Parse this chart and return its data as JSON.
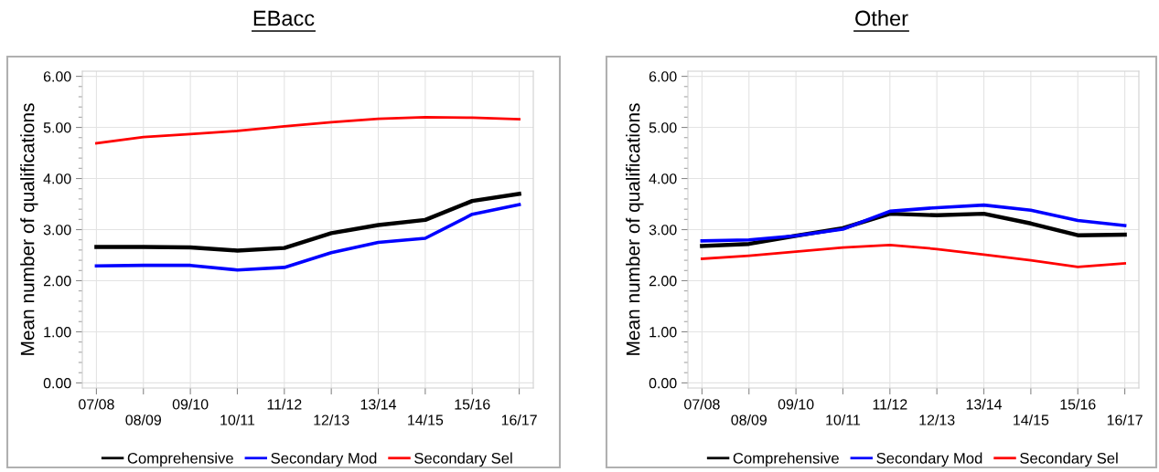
{
  "chart_data": [
    {
      "type": "line",
      "title": "EBacc",
      "ylabel": "Mean number of qualifications",
      "categories": [
        "07/08",
        "08/09",
        "09/10",
        "10/11",
        "11/12",
        "12/13",
        "13/14",
        "14/15",
        "15/16",
        "16/17"
      ],
      "series": [
        {
          "name": "Comprehensive",
          "color": "#000000",
          "values": [
            2.66,
            2.66,
            2.65,
            2.59,
            2.64,
            2.93,
            3.09,
            3.19,
            3.56,
            3.7
          ]
        },
        {
          "name": "Secondary Mod",
          "color": "#0000ff",
          "values": [
            2.29,
            2.3,
            2.3,
            2.21,
            2.26,
            2.55,
            2.75,
            2.83,
            3.3,
            3.49
          ]
        },
        {
          "name": "Secondary Sel",
          "color": "#ff0000",
          "values": [
            4.69,
            4.81,
            4.87,
            4.93,
            5.02,
            5.1,
            5.17,
            5.2,
            5.19,
            5.16
          ]
        }
      ],
      "ylim": [
        -0.1,
        6.1
      ],
      "yticks": [
        {
          "value": 0,
          "label": "0.00"
        },
        {
          "value": 1,
          "label": "1.00"
        },
        {
          "value": 2,
          "label": "2.00"
        },
        {
          "value": 3,
          "label": "3.00"
        },
        {
          "value": 4,
          "label": "4.00"
        },
        {
          "value": 5,
          "label": "5.00"
        },
        {
          "value": 6,
          "label": "6.00"
        }
      ],
      "grid": true,
      "legend": "bottom",
      "line_style": "solid",
      "marker": "none"
    },
    {
      "type": "line",
      "title": "Other",
      "ylabel": "Mean number of qualifications",
      "categories": [
        "07/08",
        "08/09",
        "09/10",
        "10/11",
        "11/12",
        "12/13",
        "13/14",
        "14/15",
        "15/16",
        "16/17"
      ],
      "series": [
        {
          "name": "Comprehensive",
          "color": "#000000",
          "values": [
            2.68,
            2.72,
            2.88,
            3.03,
            3.31,
            3.28,
            3.31,
            3.12,
            2.89,
            2.9
          ]
        },
        {
          "name": "Secondary Mod",
          "color": "#0000ff",
          "values": [
            2.78,
            2.8,
            2.88,
            3.01,
            3.36,
            3.43,
            3.48,
            3.38,
            3.18,
            3.08
          ]
        },
        {
          "name": "Secondary Sel",
          "color": "#ff0000",
          "values": [
            2.43,
            2.49,
            2.57,
            2.65,
            2.7,
            2.62,
            2.51,
            2.4,
            2.27,
            2.34
          ]
        }
      ],
      "ylim": [
        -0.1,
        6.1
      ],
      "yticks": [
        {
          "value": 0,
          "label": "0.00"
        },
        {
          "value": 1,
          "label": "1.00"
        },
        {
          "value": 2,
          "label": "2.00"
        },
        {
          "value": 3,
          "label": "3.00"
        },
        {
          "value": 4,
          "label": "4.00"
        },
        {
          "value": 5,
          "label": "5.00"
        },
        {
          "value": 6,
          "label": "6.00"
        }
      ],
      "grid": true,
      "legend": "bottom",
      "line_style": "solid",
      "marker": "none"
    }
  ]
}
